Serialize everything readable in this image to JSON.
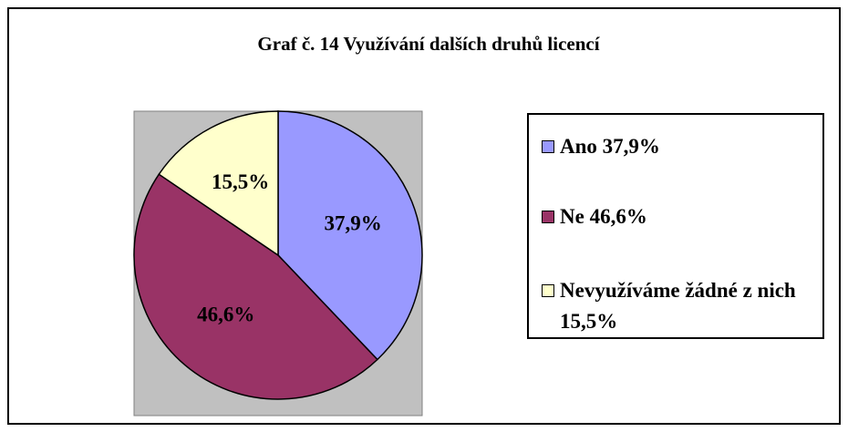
{
  "chart_data": {
    "type": "pie",
    "title": "Graf č. 14 Využívání dalších druhů licencí",
    "categories": [
      "Ano 37,9%",
      "Ne 46,6%",
      "Nevyužíváme žádné z nich 15,5%"
    ],
    "values": [
      37.9,
      46.6,
      15.5
    ],
    "value_labels": [
      "37,9%",
      "46,6%",
      "15,5%"
    ],
    "colors": [
      "#9999ff",
      "#993366",
      "#ffffcc"
    ],
    "legend": "right"
  }
}
